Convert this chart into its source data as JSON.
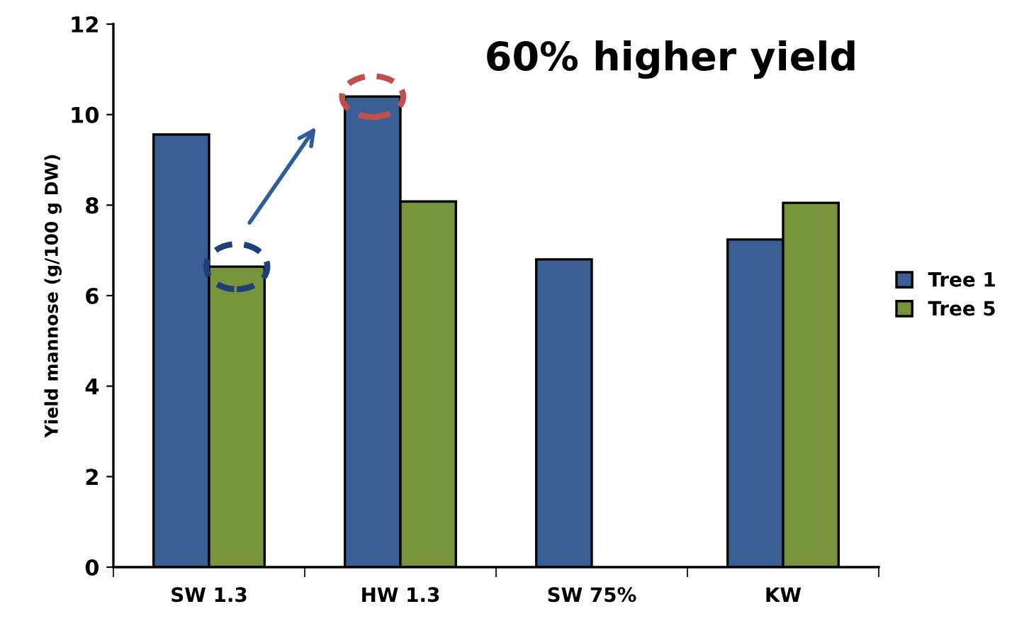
{
  "chart_data": {
    "type": "bar",
    "ylabel": "Yield mannose (g/100 g DW)",
    "categories": [
      "SW 1.3",
      "HW 1.3",
      "SW 75%",
      "KW"
    ],
    "series": [
      {
        "name": "Tree 1",
        "color": "#3a5f94",
        "values": [
          9.56,
          10.4,
          6.8,
          7.24
        ]
      },
      {
        "name": "Tree 5",
        "color": "#77933c",
        "values": [
          6.64,
          8.08,
          null,
          8.05
        ]
      }
    ],
    "ylim": [
      0,
      12
    ],
    "yticks": [
      0,
      2,
      4,
      6,
      8,
      10,
      12
    ],
    "grid": false,
    "legend": "right",
    "annotations": [
      "60% higher yield"
    ]
  }
}
